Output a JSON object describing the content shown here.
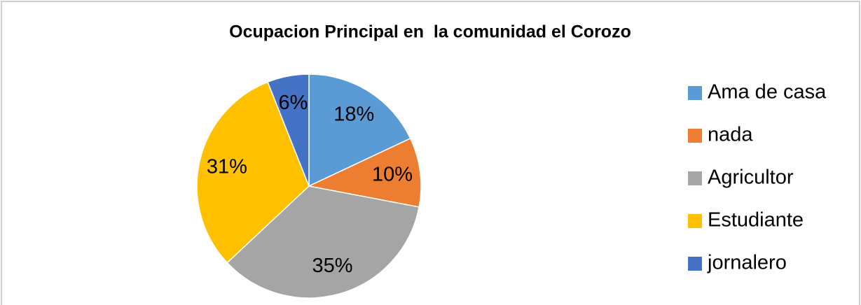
{
  "chart_data": {
    "type": "pie",
    "title": "Ocupacion Principal en  la comunidad el Corozo",
    "categories": [
      "Ama de casa",
      "nada",
      "Agricultor",
      "Estudiante",
      "jornalero"
    ],
    "values": [
      18,
      10,
      35,
      31,
      6
    ],
    "value_labels": [
      "18%",
      "10%",
      "35%",
      "31%",
      "6%"
    ],
    "colors": [
      "#5b9bd5",
      "#ed7d31",
      "#a5a5a5",
      "#ffc000",
      "#4472c4"
    ],
    "legend": "right"
  }
}
